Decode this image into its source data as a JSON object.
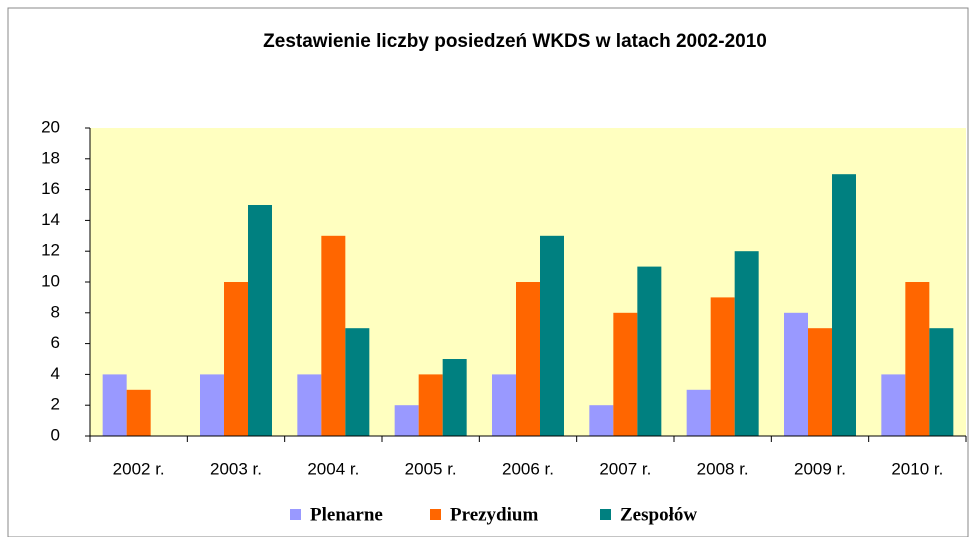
{
  "chart_data": {
    "type": "bar",
    "title": "Zestawienie liczby posiedzeń WKDS  w latach  2002-2010",
    "categories": [
      "2002 r.",
      "2003 r.",
      "2004 r.",
      "2005 r.",
      "2006 r.",
      "2007 r.",
      "2008 r.",
      "2009 r.",
      "2010 r."
    ],
    "series": [
      {
        "name": "Plenarne",
        "color": "#9999ff",
        "values": [
          4,
          4,
          4,
          2,
          4,
          2,
          3,
          8,
          4
        ]
      },
      {
        "name": "Prezydium",
        "color": "#ff6600",
        "values": [
          3,
          10,
          13,
          4,
          10,
          8,
          9,
          7,
          10
        ]
      },
      {
        "name": "Zespołów",
        "color": "#008080",
        "values": [
          0,
          15,
          7,
          5,
          13,
          11,
          12,
          17,
          7
        ]
      }
    ],
    "ylim": [
      0,
      20
    ],
    "yticks": [
      0,
      2,
      4,
      6,
      8,
      10,
      12,
      14,
      16,
      18,
      20
    ],
    "grid": false,
    "plot_background": "#ffffc0",
    "legend": "bottom"
  }
}
